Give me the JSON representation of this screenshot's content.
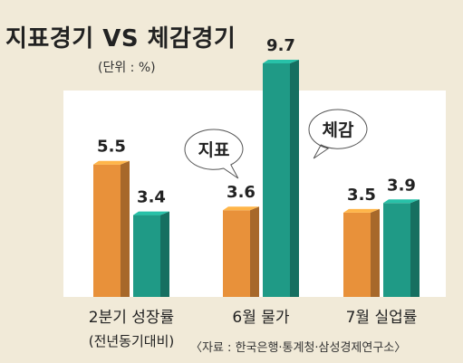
{
  "title": "지표경기 VS 체감경기",
  "unit": "(단위 : %)",
  "source": "〈자료 : 한국은행·통계청·삼성경제연구소〉",
  "chart_data": {
    "type": "bar",
    "title": "지표경기 VS 체감경기",
    "categories": [
      "2분기 성장률",
      "6월 물가",
      "7월 실업률"
    ],
    "category_sublabels": [
      "(전년동기대비)",
      "",
      ""
    ],
    "series": [
      {
        "name": "지표",
        "values": [
          5.5,
          3.6,
          3.5
        ],
        "color": "#e8913a"
      },
      {
        "name": "체감",
        "values": [
          3.4,
          9.7,
          3.9
        ],
        "color": "#1f9a86"
      }
    ],
    "value_labels": [
      [
        "5.5",
        "3.6",
        "3.5"
      ],
      [
        "3.4",
        "9.7",
        "3.9"
      ]
    ],
    "ylim": [
      0,
      11
    ],
    "grid": false,
    "legend": "callout bubbles"
  },
  "colors": {
    "background": "#f1ead8",
    "plot": "#ffffff",
    "orange": "#e8913a",
    "teal": "#1f9a86"
  }
}
